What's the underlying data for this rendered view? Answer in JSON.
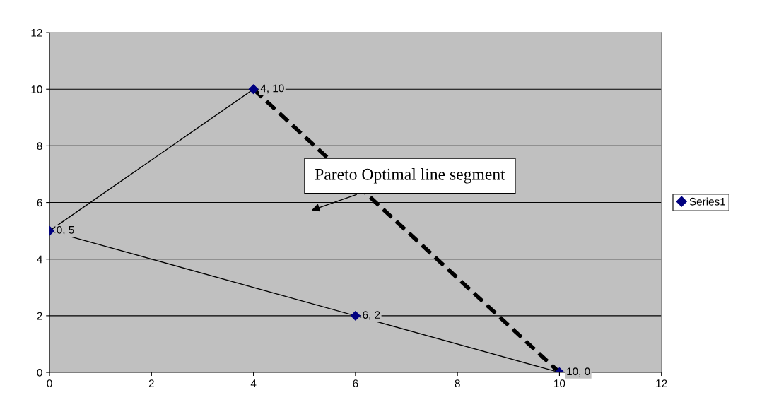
{
  "chart_data": {
    "type": "scatter",
    "xlim": [
      0,
      12
    ],
    "xticks": [
      0,
      2,
      4,
      6,
      8,
      10,
      12
    ],
    "ylim": [
      0,
      12
    ],
    "yticks": [
      0,
      2,
      4,
      6,
      8,
      10,
      12
    ],
    "grid": "y",
    "legend": "right",
    "marker": "diamond",
    "annotations": [
      "Pareto Optimal line segment"
    ],
    "series": [
      {
        "type": "line",
        "color": "#000000",
        "line_style": "solid",
        "marker": "none",
        "x": [
          4,
          0,
          10
        ],
        "values": [
          10,
          5,
          0
        ]
      },
      {
        "type": "line",
        "color": "#000000",
        "line_style": "dashed",
        "marker": "none",
        "x": [
          4,
          10
        ],
        "values": [
          10,
          0
        ]
      },
      {
        "name": "Series1",
        "color": "#000080",
        "x": [
          0,
          4,
          6,
          10
        ],
        "values": [
          5,
          10,
          2,
          0
        ],
        "value_labels": [
          "0, 5",
          "4, 10",
          "6, 2",
          "10, 0"
        ]
      }
    ]
  }
}
